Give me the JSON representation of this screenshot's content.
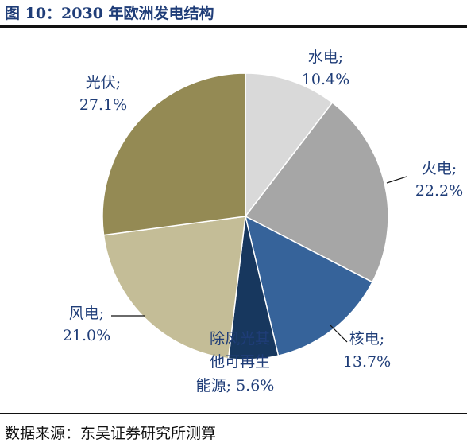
{
  "title": "图 10：2030 年欧洲发电结构",
  "source": "数据来源：东吴证券研究所测算",
  "chart_data": {
    "type": "pie",
    "start_angle_deg": 0,
    "direction": "clockwise",
    "slices": [
      {
        "name": "水电",
        "value": 10.4,
        "value_label": "10.4%",
        "color": "#d9d9d9"
      },
      {
        "name": "火电",
        "value": 22.2,
        "value_label": "22.2%",
        "color": "#a6a6a6"
      },
      {
        "name": "核电",
        "value": 13.7,
        "value_label": "13.7%",
        "color": "#36639a"
      },
      {
        "name": "除风光其他可再生能源",
        "value": 5.6,
        "value_label": "5.6%",
        "color": "#17375e"
      },
      {
        "name": "风电",
        "value": 21.0,
        "value_label": "21.0%",
        "color": "#c4bd97"
      },
      {
        "name": "光伏",
        "value": 27.1,
        "value_label": "27.1%",
        "color": "#948a54"
      }
    ]
  }
}
